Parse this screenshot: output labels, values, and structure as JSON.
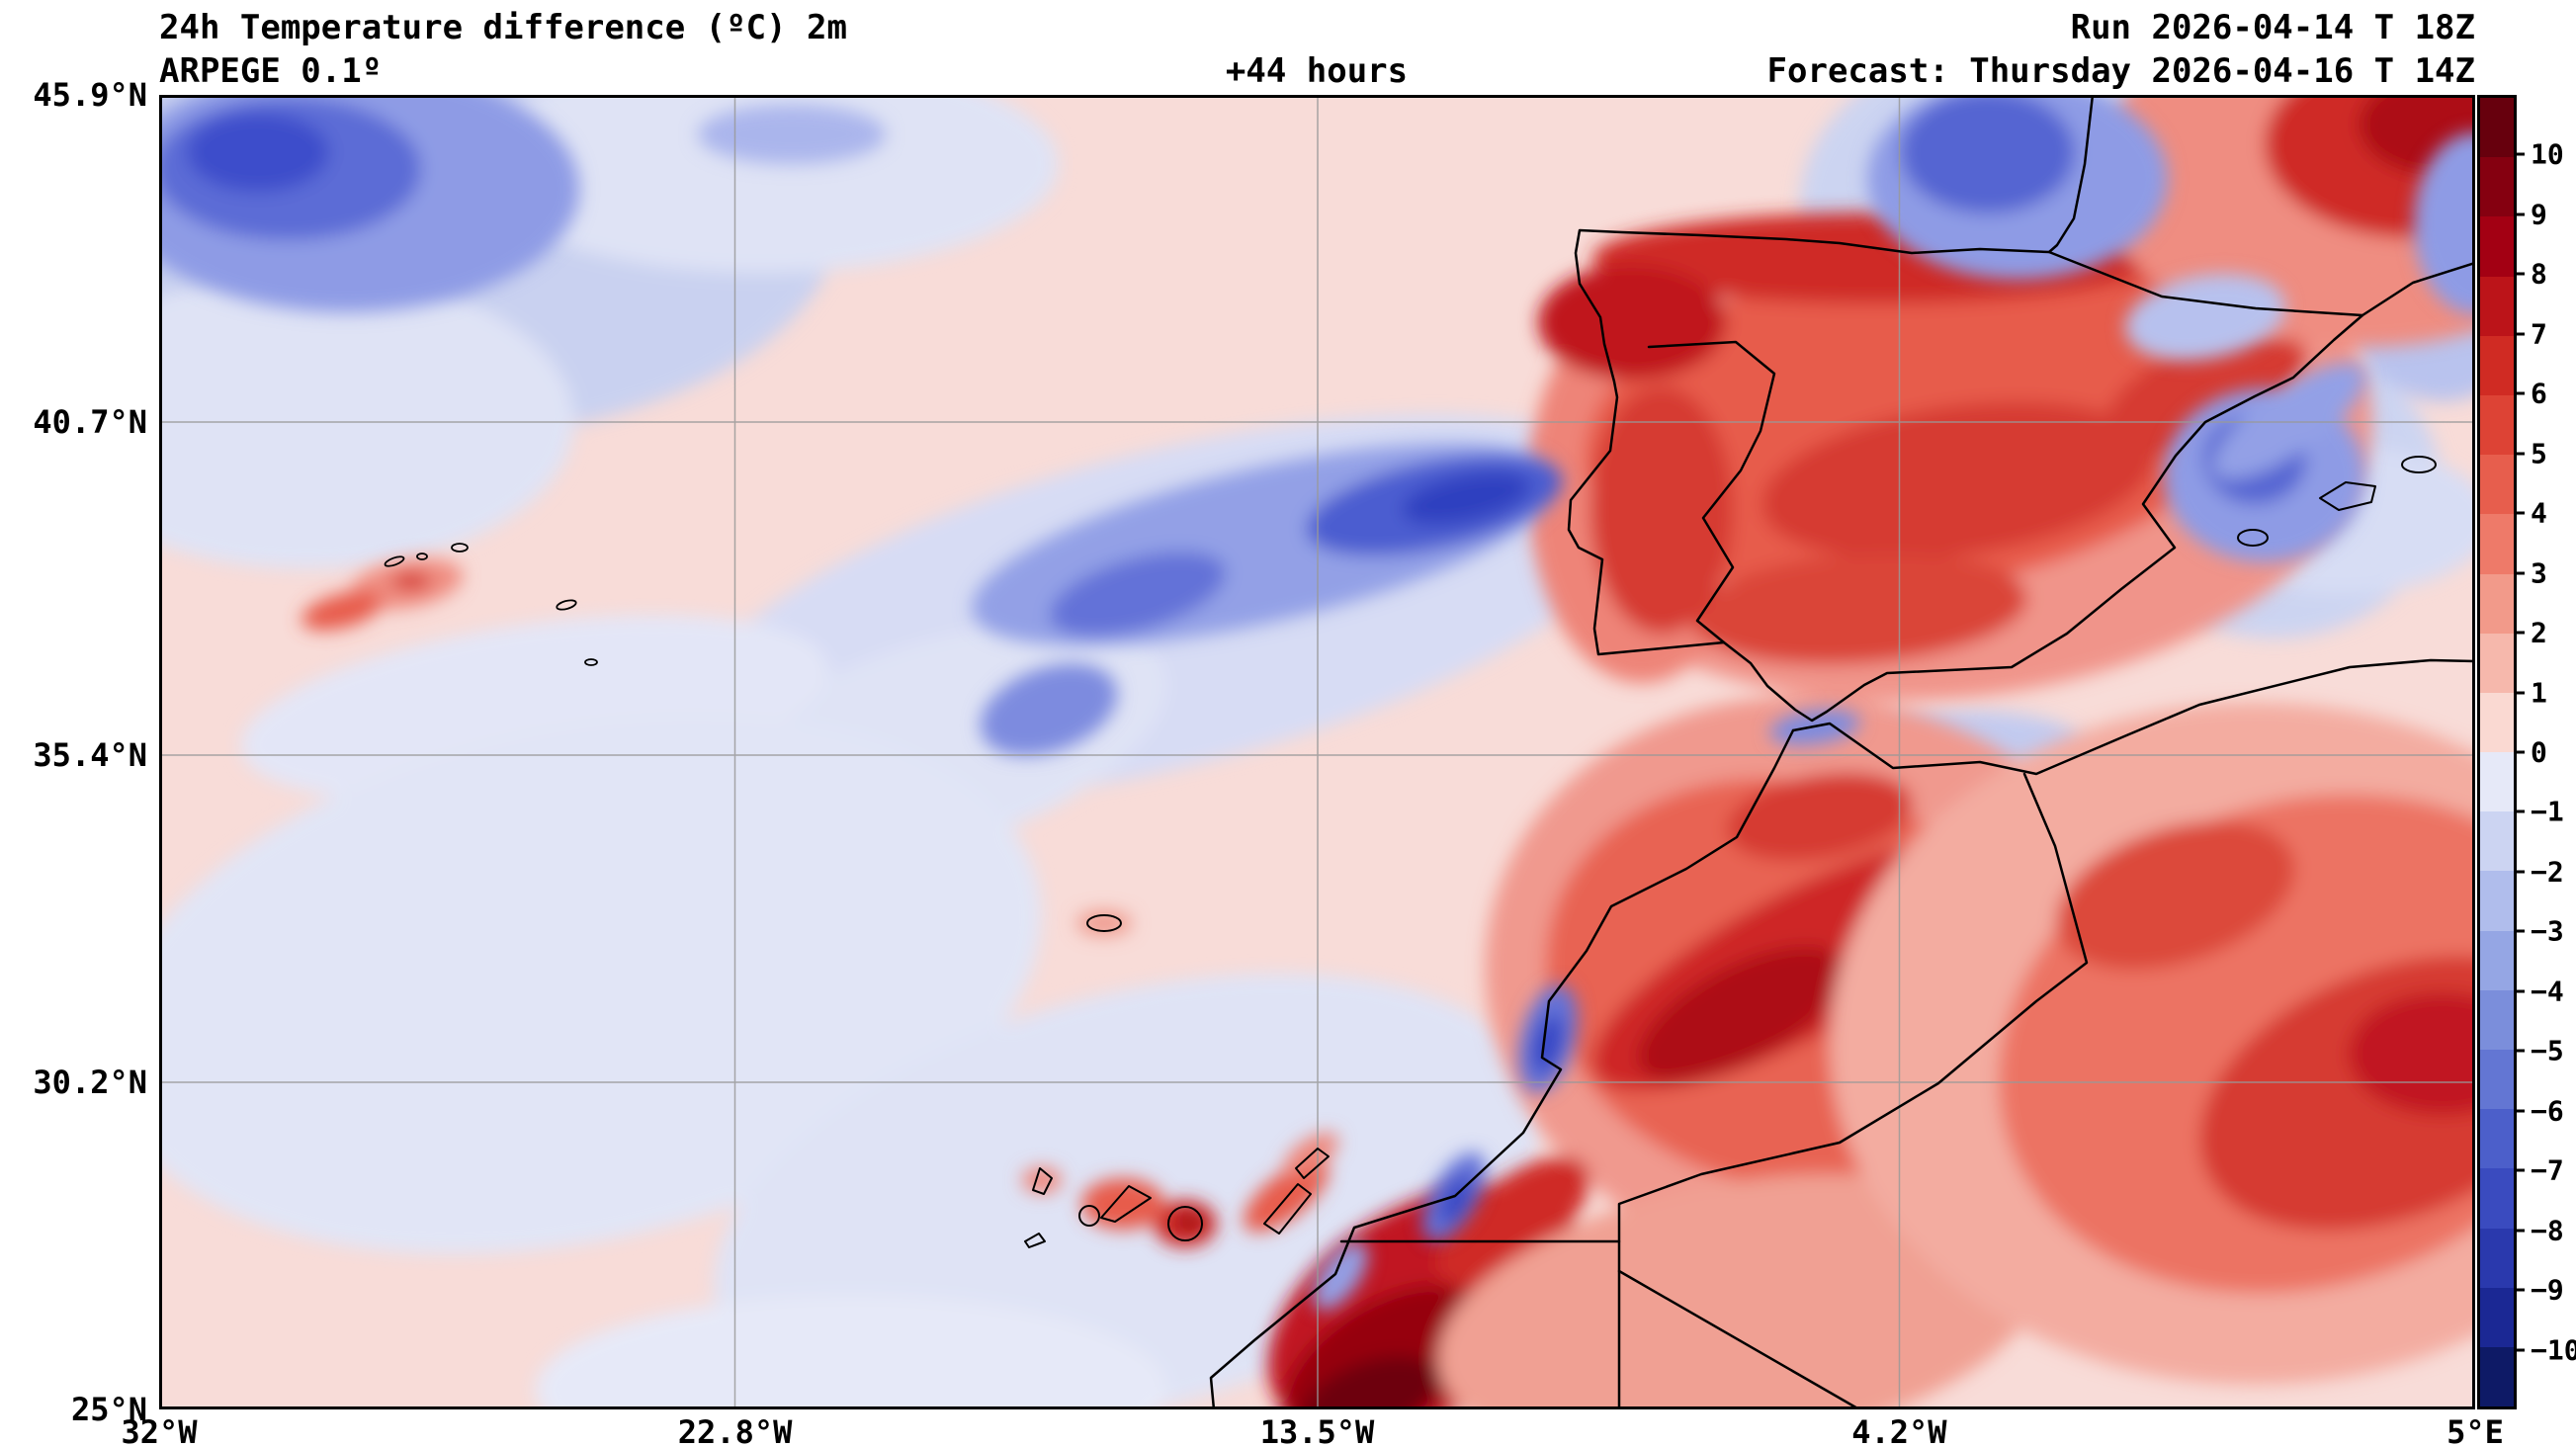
{
  "header": {
    "title": "24h Temperature difference (ºC) 2m",
    "model": "ARPEGE 0.1º",
    "lead_time": "+44 hours",
    "run": "Run 2026-04-14 T 18Z",
    "forecast": "Forecast: Thursday 2026-04-16 T 14Z"
  },
  "chart_data": {
    "type": "heatmap",
    "title": "24h Temperature difference (ºC) 2m",
    "model": "ARPEGE 0.1º",
    "lead_time_hours": 44,
    "run": "2026-04-14 18Z",
    "valid": "Thursday 2026-04-16 14Z",
    "units": "°C",
    "lon_range_deg": [
      -32,
      5
    ],
    "lat_range_deg": [
      25,
      45.9
    ],
    "grid": true,
    "lon_ticks": [
      {
        "label": "32°W",
        "value_deg": -32
      },
      {
        "label": "22.8°W",
        "value_deg": -22.8
      },
      {
        "label": "13.5°W",
        "value_deg": -13.5
      },
      {
        "label": "4.2°W",
        "value_deg": -4.2
      },
      {
        "label": "5°E",
        "value_deg": 5
      }
    ],
    "lat_ticks": [
      {
        "label": "45.9°N",
        "value_deg": 45.9
      },
      {
        "label": "40.7°N",
        "value_deg": 40.7
      },
      {
        "label": "35.4°N",
        "value_deg": 35.4
      },
      {
        "label": "30.2°N",
        "value_deg": 30.2
      },
      {
        "label": "25°N",
        "value_deg": 25
      }
    ],
    "colorbar": {
      "min": -11,
      "max": 11,
      "tick_labels": [
        "10",
        "9",
        "8",
        "7",
        "6",
        "5",
        "4",
        "3",
        "2",
        "1",
        "0",
        "−1",
        "−2",
        "−3",
        "−4",
        "−5",
        "−6",
        "−7",
        "−8",
        "−9",
        "−10"
      ],
      "segment_colors": [
        "#67000d",
        "#850010",
        "#a30013",
        "#bc1419",
        "#d02b23",
        "#dd4335",
        "#e75e4d",
        "#ee7a69",
        "#f29a8a",
        "#f6b8ac",
        "#fad9d2",
        "#e6e9f8",
        "#ccd4f2",
        "#b0bdec",
        "#95a6e4",
        "#7b8edb",
        "#6376d3",
        "#4c5fca",
        "#3a4bbf",
        "#2a39ad",
        "#1b2894",
        "#0e1a66"
      ]
    },
    "regions": [
      {
        "area": "northwest Atlantic (top-left corner)",
        "value_c": "-3 to -7"
      },
      {
        "area": "central Atlantic band stretching ENE toward NW Iberia",
        "value_c": "-2 to -6"
      },
      {
        "area": "Bay of Biscay",
        "value_c": "-3 to -6"
      },
      {
        "area": "open Atlantic (most of the ocean)",
        "value_c": "-1 to +1"
      },
      {
        "area": "Iberian Peninsula interior",
        "value_c": "+3 to +7"
      },
      {
        "area": "north coast of Spain / Cantabrian range",
        "value_c": "+5 to +8"
      },
      {
        "area": "NE Spain Mediterranean coast / Ebro area",
        "value_c": "-2 to -5"
      },
      {
        "area": "SW France (top-right corner)",
        "value_c": "+4 to +8"
      },
      {
        "area": "Morocco and Atlas Mountains",
        "value_c": "+4 to +8"
      },
      {
        "area": "southern Morocco / Western Sahara coast",
        "value_c": "+8 to +11"
      },
      {
        "area": "interior Algeria",
        "value_c": "+3 to +7"
      },
      {
        "area": "Canary Islands",
        "value_c": "+2 to +5"
      },
      {
        "area": "coastal upwelling spots off Morocco",
        "value_c": "-2 to -6"
      },
      {
        "area": "Azores patch",
        "value_c": "+1 to +3"
      }
    ]
  },
  "palette": {
    "ocean_near_zero_warm": "#f8dcd8",
    "ocean_near_zero_cool": "#e1e5f6",
    "coastline": "#000000",
    "grid": "#999999"
  }
}
